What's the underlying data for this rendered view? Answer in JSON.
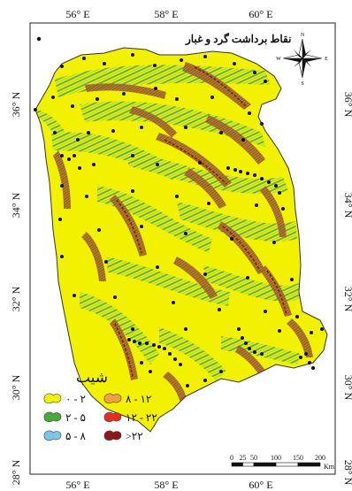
{
  "frame": {
    "top_labels": [
      "56° E",
      "58° E",
      "60° E"
    ],
    "bottom_labels": [
      "56° E",
      "58° E",
      "60° E"
    ],
    "left_labels": [
      "36° N",
      "34° N",
      "32° N",
      "30° N",
      "28° N"
    ],
    "right_labels": [
      "36° N",
      "34° N",
      "32° N",
      "30° N",
      "28° N"
    ]
  },
  "points_legend": {
    "label": "نقاط برداشت گرد و غبار",
    "color": "#111111"
  },
  "compass": {
    "n": "N",
    "s": "S",
    "e": "E",
    "w": "W"
  },
  "slope_legend": {
    "title": "شیب",
    "items": [
      {
        "label": "۰ - ۲",
        "color": "#f3f300"
      },
      {
        "label": "۲ - ۵",
        "color": "#4aa83a"
      },
      {
        "label": "۵ - ۸",
        "color": "#7cc6e8"
      },
      {
        "label": "۸ - ۱۲",
        "color": "#f0a040"
      },
      {
        "label": "۱۲ - ۲۲",
        "color": "#e23020"
      },
      {
        "label": ">۲۲",
        "color": "#8a1a1a"
      }
    ]
  },
  "scale_bar": {
    "labels": [
      "0",
      "25",
      "50",
      "100",
      "150",
      "200"
    ],
    "unit": "Km"
  },
  "colors": {
    "region_fill": "#f2f200",
    "region_stroke": "#333333",
    "hatch_green": "#6fbf5a",
    "hatch_red": "#d83a22",
    "hatch_dark": "#8a1a1a"
  }
}
